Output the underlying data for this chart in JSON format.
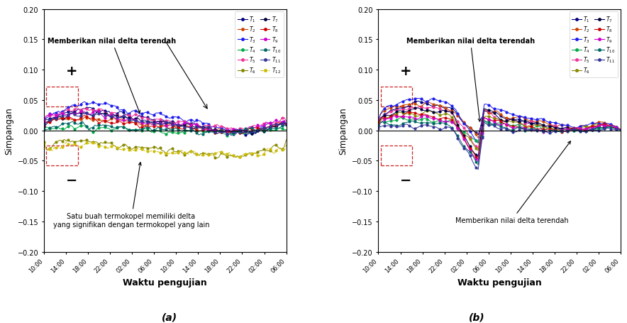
{
  "title_a": "(a)",
  "title_b": "(b)",
  "ylabel": "Simpangan",
  "xlabel": "Waktu pengujian",
  "ylim": [
    -0.2,
    0.2
  ],
  "yticks": [
    -0.2,
    -0.15,
    -0.1,
    -0.05,
    0.0,
    0.05,
    0.1,
    0.15,
    0.2
  ],
  "xtick_labels": [
    "10:00",
    "14:00",
    "18:00",
    "22:00",
    "02:00",
    "06:00",
    "10:00",
    "14:00",
    "18:00",
    "22:00",
    "02:00",
    "06:00"
  ],
  "n_points": 120,
  "annotation_a_top": "Memberikan nilai delta terendah",
  "annotation_a_bot": "Satu buah termokopel memiliki delta\nyang signifikan dengan termokopel yang lain",
  "annotation_b_top": "Memberikan nilai delta terendah",
  "annotation_b_bot": "Memberikan nilai delta terendah",
  "legend_labels_a": [
    "$T_1$",
    "$T_2$",
    "$T_3$",
    "$T_4$",
    "$T_5$",
    "$T_6$",
    "$T_7$",
    "$T_8$",
    "$T_9$",
    "$T_{10}$",
    "$T_{11}$",
    "$T_{12}$"
  ],
  "legend_labels_b": [
    "$T_1$",
    "$T_2$",
    "$T_3$",
    "$T_4$",
    "$T_5$",
    "$T_6$",
    "$T_7$",
    "$T_8$",
    "$T_9$",
    "$T_{10}$",
    "$T_{11}$"
  ],
  "colors_a": [
    "#000080",
    "#cc4400",
    "#1a1aee",
    "#00aa44",
    "#ee3399",
    "#888800",
    "#000040",
    "#cc0000",
    "#cc00cc",
    "#006666",
    "#333399",
    "#ccaa00"
  ],
  "colors_b": [
    "#000080",
    "#cc4400",
    "#1a1aee",
    "#00aa44",
    "#ee3399",
    "#888800",
    "#000040",
    "#cc0000",
    "#cc00cc",
    "#006666",
    "#333399"
  ],
  "bg_color": "#ffffff",
  "box_color": "#cc0000"
}
